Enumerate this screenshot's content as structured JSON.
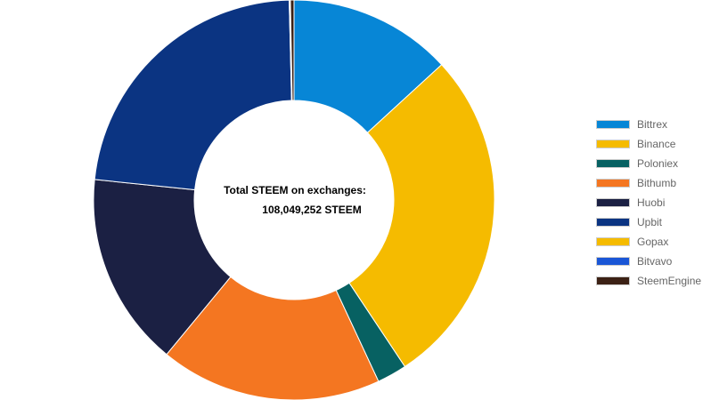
{
  "chart_data": {
    "type": "pie",
    "variant": "donut",
    "center_text": {
      "line1": "Total STEEM on exchanges:",
      "line2": "108,049,252 STEEM"
    },
    "legend_position": "right",
    "slices": [
      {
        "label": "Bittrex",
        "value": 13.7,
        "color": "#0786d6"
      },
      {
        "label": "Binance",
        "value": 28.6,
        "color": "#f5bb00"
      },
      {
        "label": "Poloniex",
        "value": 2.5,
        "color": "#076162"
      },
      {
        "label": "Bithumb",
        "value": 18.6,
        "color": "#f47621"
      },
      {
        "label": "Huobi",
        "value": 16.3,
        "color": "#1b2043"
      },
      {
        "label": "Upbit",
        "value": 23.9,
        "color": "#0b3482"
      },
      {
        "label": "Gopax",
        "value": 0.05,
        "color": "#f5bb00"
      },
      {
        "label": "Bitvavo",
        "value": 0.05,
        "color": "#1a56d6"
      },
      {
        "label": "SteemEngine",
        "value": 0.3,
        "color": "#3c2115"
      }
    ]
  }
}
